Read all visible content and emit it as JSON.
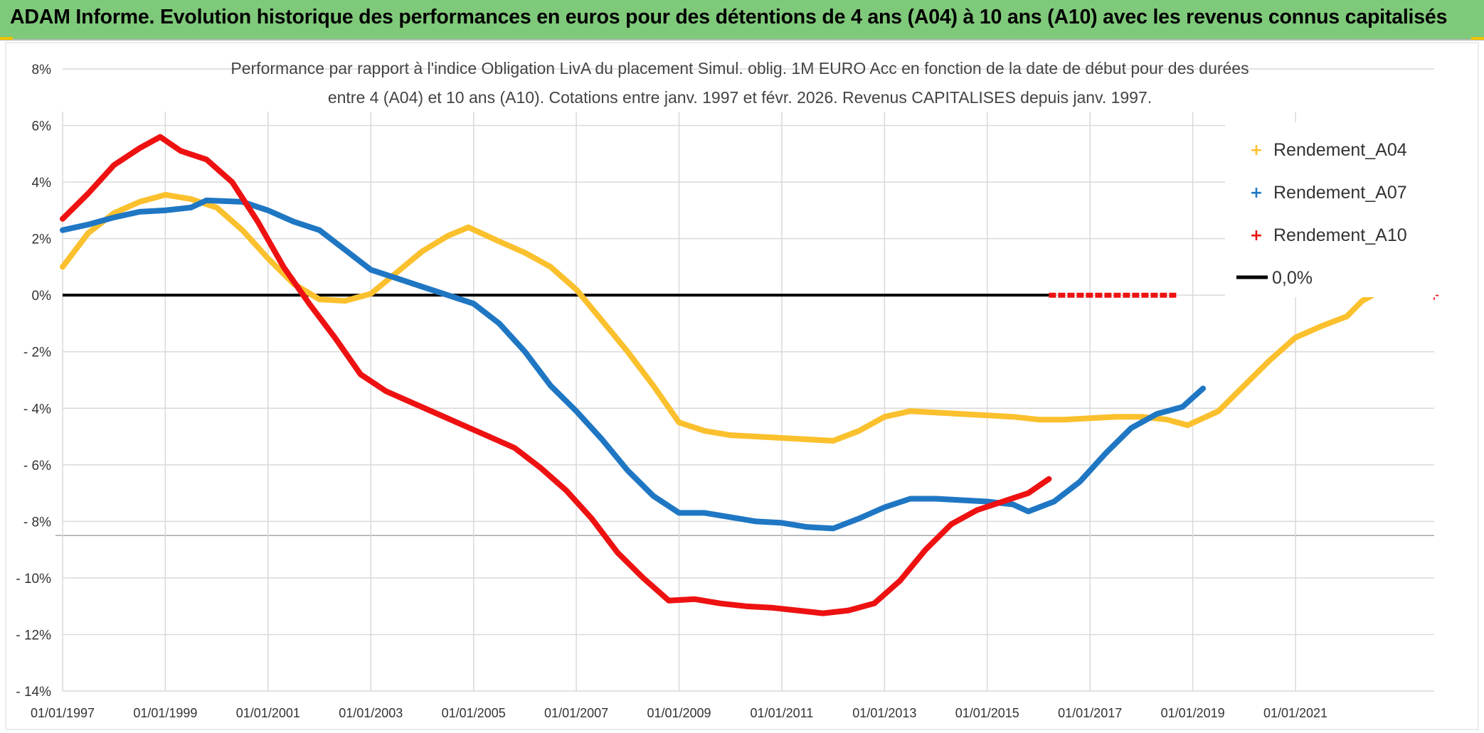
{
  "banner": {
    "title": "ADAM Informe. Evolution historique des performances en euros pour des détentions de 4 ans (A04) à 10 ans (A10) avec les revenus connus capitalisés"
  },
  "colors": {
    "banner_bg": "#7fc97a",
    "A04": "#fbc02d",
    "A07": "#1f77c3",
    "A10": "#ee1111",
    "zero_line": "#000000",
    "grid": "#d9d9d9"
  },
  "chart_data": {
    "type": "line",
    "title_line1": "Performance par rapport à l'indice Obligation LivA  du placement Simul. oblig. 1M EURO Acc en fonction de la date de début pour des durées",
    "title_line2": "entre 4 (A04) et 10 ans (A10). Cotations entre janv. 1997 et févr. 2026. Revenus CAPITALISES depuis janv. 1997.",
    "xlabel": "",
    "ylabel": "",
    "x_unit": "year",
    "xlim": [
      1997,
      2023.7
    ],
    "ylim": [
      -14,
      8
    ],
    "y_ticks": [
      8,
      6,
      4,
      2,
      0,
      -2,
      -4,
      -6,
      -8,
      -10,
      -12,
      -14
    ],
    "y_tick_labels": [
      "8%",
      "6%",
      "4%",
      "2%",
      "0%",
      "- 2%",
      "- 4%",
      "- 6%",
      "- 8%",
      "- 10%",
      "- 12%",
      "- 14%"
    ],
    "x_ticks": [
      1997,
      1999,
      2001,
      2003,
      2005,
      2007,
      2009,
      2011,
      2013,
      2015,
      2017,
      2019,
      2021
    ],
    "x_tick_labels": [
      "01/01/1997",
      "01/01/1999",
      "01/01/2001",
      "01/01/2003",
      "01/01/2005",
      "01/01/2007",
      "01/01/2009",
      "01/01/2011",
      "01/01/2013",
      "01/01/2015",
      "01/01/2017",
      "01/01/2019",
      "01/01/2021"
    ],
    "grid": true,
    "legend_position": "top-right",
    "series": [
      {
        "name": "Rendement_A04",
        "color": "#fbc02d",
        "points": [
          [
            1997.0,
            1.0
          ],
          [
            1997.5,
            2.2
          ],
          [
            1998.0,
            2.9
          ],
          [
            1998.5,
            3.3
          ],
          [
            1999.0,
            3.55
          ],
          [
            1999.5,
            3.4
          ],
          [
            2000.0,
            3.1
          ],
          [
            2000.5,
            2.3
          ],
          [
            2001.0,
            1.3
          ],
          [
            2001.5,
            0.4
          ],
          [
            2002.0,
            -0.15
          ],
          [
            2002.5,
            -0.2
          ],
          [
            2003.0,
            0.05
          ],
          [
            2003.5,
            0.8
          ],
          [
            2004.0,
            1.55
          ],
          [
            2004.5,
            2.1
          ],
          [
            2004.9,
            2.4
          ],
          [
            2005.5,
            1.9
          ],
          [
            2006.0,
            1.5
          ],
          [
            2006.5,
            1.0
          ],
          [
            2007.0,
            0.2
          ],
          [
            2007.5,
            -0.9
          ],
          [
            2008.0,
            -2.0
          ],
          [
            2008.5,
            -3.2
          ],
          [
            2009.0,
            -4.5
          ],
          [
            2009.5,
            -4.8
          ],
          [
            2010.0,
            -4.95
          ],
          [
            2010.5,
            -5.0
          ],
          [
            2011.0,
            -5.05
          ],
          [
            2011.5,
            -5.1
          ],
          [
            2012.0,
            -5.15
          ],
          [
            2012.5,
            -4.8
          ],
          [
            2013.0,
            -4.3
          ],
          [
            2013.5,
            -4.1
          ],
          [
            2014.0,
            -4.15
          ],
          [
            2014.5,
            -4.2
          ],
          [
            2015.0,
            -4.25
          ],
          [
            2015.5,
            -4.3
          ],
          [
            2016.0,
            -4.4
          ],
          [
            2016.5,
            -4.4
          ],
          [
            2017.0,
            -4.35
          ],
          [
            2017.5,
            -4.3
          ],
          [
            2018.0,
            -4.3
          ],
          [
            2018.5,
            -4.4
          ],
          [
            2018.9,
            -4.6
          ],
          [
            2019.5,
            -4.1
          ],
          [
            2020.0,
            -3.2
          ],
          [
            2020.5,
            -2.3
          ],
          [
            2021.0,
            -1.5
          ],
          [
            2021.5,
            -1.1
          ],
          [
            2022.0,
            -0.75
          ],
          [
            2022.3,
            -0.2
          ],
          [
            2022.5,
            0.0
          ]
        ]
      },
      {
        "name": "Rendement_A07",
        "color": "#1f77c3",
        "points": [
          [
            1997.0,
            2.3
          ],
          [
            1997.5,
            2.5
          ],
          [
            1998.0,
            2.75
          ],
          [
            1998.5,
            2.95
          ],
          [
            1999.0,
            3.0
          ],
          [
            1999.5,
            3.1
          ],
          [
            1999.8,
            3.35
          ],
          [
            2000.5,
            3.3
          ],
          [
            2001.0,
            3.0
          ],
          [
            2001.5,
            2.6
          ],
          [
            2002.0,
            2.3
          ],
          [
            2002.5,
            1.6
          ],
          [
            2003.0,
            0.9
          ],
          [
            2003.5,
            0.6
          ],
          [
            2004.0,
            0.3
          ],
          [
            2004.5,
            0.0
          ],
          [
            2005.0,
            -0.3
          ],
          [
            2005.5,
            -1.0
          ],
          [
            2006.0,
            -2.0
          ],
          [
            2006.5,
            -3.2
          ],
          [
            2007.0,
            -4.1
          ],
          [
            2007.5,
            -5.1
          ],
          [
            2008.0,
            -6.2
          ],
          [
            2008.5,
            -7.1
          ],
          [
            2009.0,
            -7.7
          ],
          [
            2009.5,
            -7.7
          ],
          [
            2010.0,
            -7.85
          ],
          [
            2010.5,
            -8.0
          ],
          [
            2011.0,
            -8.05
          ],
          [
            2011.5,
            -8.2
          ],
          [
            2012.0,
            -8.25
          ],
          [
            2012.5,
            -7.9
          ],
          [
            2013.0,
            -7.5
          ],
          [
            2013.5,
            -7.2
          ],
          [
            2014.0,
            -7.2
          ],
          [
            2014.5,
            -7.25
          ],
          [
            2015.0,
            -7.3
          ],
          [
            2015.5,
            -7.4
          ],
          [
            2015.8,
            -7.65
          ],
          [
            2016.3,
            -7.3
          ],
          [
            2016.8,
            -6.6
          ],
          [
            2017.3,
            -5.6
          ],
          [
            2017.8,
            -4.7
          ],
          [
            2018.3,
            -4.2
          ],
          [
            2018.8,
            -3.95
          ],
          [
            2019.2,
            -3.3
          ]
        ]
      },
      {
        "name": "Rendement_A10",
        "color": "#ee1111",
        "points": [
          [
            1997.0,
            2.7
          ],
          [
            1997.5,
            3.6
          ],
          [
            1998.0,
            4.6
          ],
          [
            1998.5,
            5.2
          ],
          [
            1998.9,
            5.6
          ],
          [
            1999.3,
            5.1
          ],
          [
            1999.8,
            4.8
          ],
          [
            2000.3,
            4.0
          ],
          [
            2000.8,
            2.6
          ],
          [
            2001.3,
            1.0
          ],
          [
            2001.8,
            -0.3
          ],
          [
            2002.3,
            -1.5
          ],
          [
            2002.8,
            -2.8
          ],
          [
            2003.3,
            -3.4
          ],
          [
            2003.8,
            -3.8
          ],
          [
            2004.3,
            -4.2
          ],
          [
            2004.8,
            -4.6
          ],
          [
            2005.3,
            -5.0
          ],
          [
            2005.8,
            -5.4
          ],
          [
            2006.3,
            -6.1
          ],
          [
            2006.8,
            -6.9
          ],
          [
            2007.3,
            -7.9
          ],
          [
            2007.8,
            -9.1
          ],
          [
            2008.3,
            -10.0
          ],
          [
            2008.8,
            -10.8
          ],
          [
            2009.3,
            -10.75
          ],
          [
            2009.8,
            -10.9
          ],
          [
            2010.3,
            -11.0
          ],
          [
            2010.8,
            -11.05
          ],
          [
            2011.3,
            -11.15
          ],
          [
            2011.8,
            -11.25
          ],
          [
            2012.3,
            -11.15
          ],
          [
            2012.8,
            -10.9
          ],
          [
            2013.3,
            -10.1
          ],
          [
            2013.8,
            -9.0
          ],
          [
            2014.3,
            -8.1
          ],
          [
            2014.8,
            -7.6
          ],
          [
            2015.3,
            -7.3
          ],
          [
            2015.8,
            -7.0
          ],
          [
            2016.2,
            -6.5
          ]
        ]
      },
      {
        "name": "Rendement_A10 (0)",
        "color": "#ee1111",
        "dashed": true,
        "points": [
          [
            2016.2,
            0.0
          ],
          [
            2018.7,
            0.0
          ]
        ]
      }
    ],
    "reference_line": {
      "name": "0,0%",
      "value": 0,
      "color": "#000000"
    },
    "legend": {
      "items": [
        {
          "label": "Rendement_A04",
          "color": "#fbc02d",
          "marker": "plus"
        },
        {
          "label": "Rendement_A07",
          "color": "#1f77c3",
          "marker": "plus"
        },
        {
          "label": "Rendement_A10",
          "color": "#ee1111",
          "marker": "plus"
        },
        {
          "label": "0,0%",
          "color": "#000000",
          "marker": "line"
        }
      ]
    }
  }
}
